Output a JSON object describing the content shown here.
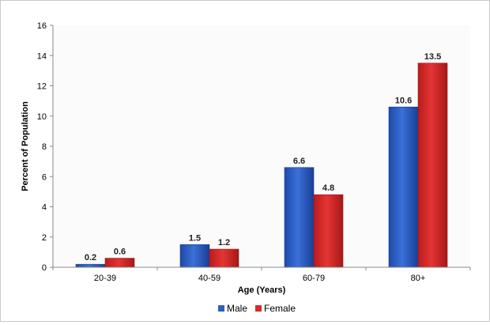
{
  "chart_data": {
    "type": "bar",
    "title": "",
    "xlabel": "Age (Years)",
    "ylabel": "Percent of Population",
    "categories": [
      "20-39",
      "40-59",
      "60-79",
      "80+"
    ],
    "series": [
      {
        "name": "Male",
        "values": [
          0.2,
          1.5,
          6.6,
          10.6
        ],
        "color": "#2e5fc4",
        "label_text": [
          "0.2",
          "1.5",
          "6.6",
          "10.6"
        ]
      },
      {
        "name": "Female",
        "values": [
          0.6,
          1.2,
          4.8,
          13.5
        ],
        "color": "#d92a2a",
        "label_text": [
          "0.6",
          "1.2",
          "4.8",
          "13.5"
        ]
      }
    ],
    "ylim": [
      0,
      16
    ],
    "yticks": [
      0,
      2,
      4,
      6,
      8,
      10,
      12,
      14,
      16
    ],
    "grid": false,
    "legend_position": "bottom-center",
    "plot_background": "#fbfbfb"
  }
}
